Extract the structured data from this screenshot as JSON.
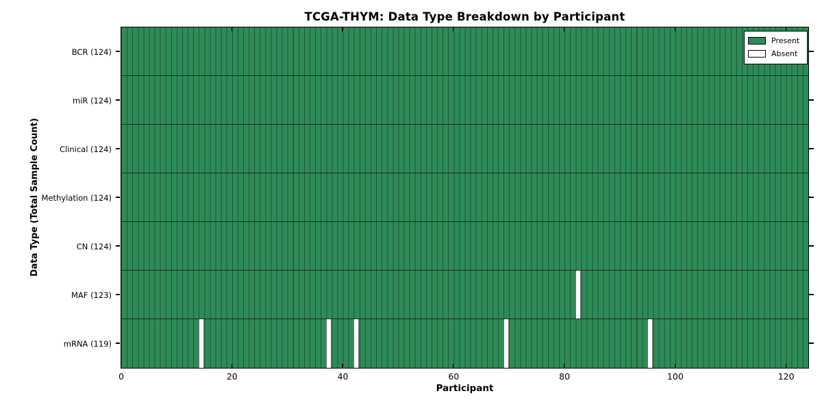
{
  "chart_data": {
    "type": "heatmap",
    "title": "TCGA-THYM: Data Type Breakdown by Participant",
    "xlabel": "Participant",
    "ylabel": "Data Type (Total Sample Count)",
    "x_ticks": [
      0,
      20,
      40,
      60,
      80,
      100,
      120
    ],
    "x_range": [
      0,
      124
    ],
    "n_participants": 124,
    "rows": [
      {
        "label": "BCR (124)",
        "data_type": "BCR",
        "total_samples": 124,
        "absent_participants": []
      },
      {
        "label": "miR (124)",
        "data_type": "miR",
        "total_samples": 124,
        "absent_participants": []
      },
      {
        "label": "Clinical (124)",
        "data_type": "Clinical",
        "total_samples": 124,
        "absent_participants": []
      },
      {
        "label": "Methylation (124)",
        "data_type": "Methylation",
        "total_samples": 124,
        "absent_participants": []
      },
      {
        "label": "CN (124)",
        "data_type": "CN",
        "total_samples": 124,
        "absent_participants": []
      },
      {
        "label": "MAF (123)",
        "data_type": "MAF",
        "total_samples": 123,
        "absent_participants": [
          82
        ]
      },
      {
        "label": "mRNA (119)",
        "data_type": "mRNA",
        "total_samples": 119,
        "absent_participants": [
          14,
          37,
          42,
          69,
          95
        ]
      }
    ],
    "legend": [
      {
        "label": "Present",
        "color": "#2E8B57"
      },
      {
        "label": "Absent",
        "color": "#FFFFFF"
      }
    ],
    "legend_position": "upper-right",
    "grid": "per-participant cell grid",
    "colors": {
      "present": "#2E8B57",
      "absent": "#FFFFFF",
      "cell_edge": "#1B5737",
      "row_separator": "#10331F",
      "frame": "#000000",
      "background": "#FFFFFF",
      "text": "#000000"
    }
  }
}
